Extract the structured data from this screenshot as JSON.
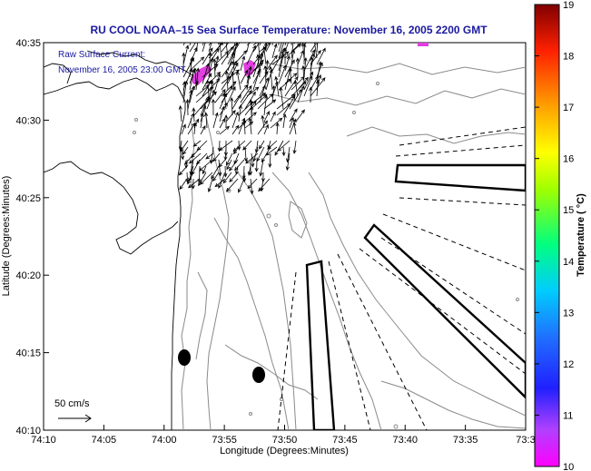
{
  "title": "RU COOL  NOAA–15  Sea Surface Temperature:  November 16, 2005 2200 GMT",
  "current_note": {
    "line1": "Raw Surface Current:",
    "line2": "November 16, 2005 23:00 GMT"
  },
  "scale_label": "50 cm/s",
  "axes": {
    "xlabel": "Longitude (Degrees:Minutes)",
    "ylabel": "Latitude (Degrees:Minutes)",
    "xticks": [
      "74:10",
      "74:05",
      "74:00",
      "73:55",
      "73:50",
      "73:45",
      "73:40",
      "73:35",
      "73:3"
    ],
    "yticks": [
      "40:35",
      "40:30",
      "40:25",
      "40:20",
      "40:15",
      "40:10"
    ]
  },
  "colorbar": {
    "label": "Temperature ( °C)",
    "ticks": [
      "19",
      "18",
      "17",
      "16",
      "15",
      "14",
      "13",
      "12",
      "11",
      "10"
    ],
    "min": 10,
    "max": 19
  },
  "colors": {
    "title_text": "#1a1aa0",
    "sst_warm_patch": "#e040e0"
  }
}
